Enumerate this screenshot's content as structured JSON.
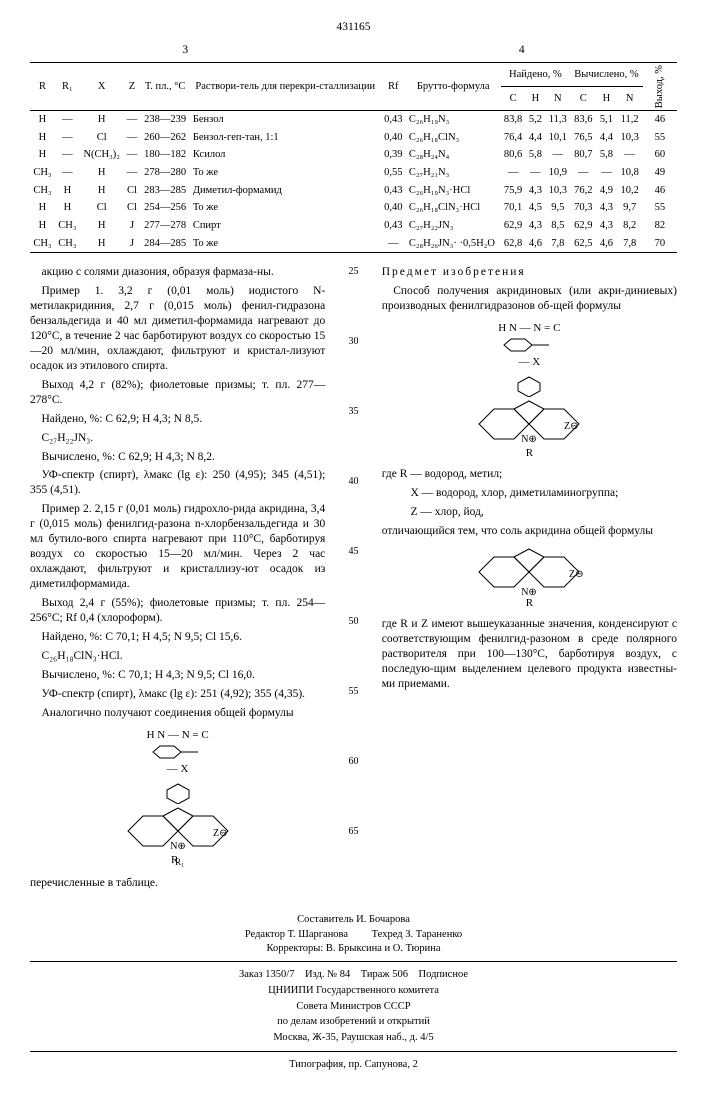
{
  "doc_number": "431165",
  "page_left": "3",
  "page_right": "4",
  "table": {
    "headers_top": [
      "R",
      "R₁",
      "X",
      "Z",
      "Т. пл., °C",
      "Раствори-тель для перекри-сталлизации",
      "Rf",
      "Брутто-формула"
    ],
    "found_label": "Найдено, %",
    "calc_label": "Вычислено, %",
    "yield_label": "Выход, %",
    "chn": [
      "C",
      "H",
      "N"
    ],
    "rows": [
      {
        "R": "H",
        "R1": "—",
        "X": "H",
        "Z": "—",
        "mp": "238—239",
        "solv": "Бензол",
        "rf": "0,43",
        "bf": "C₂₆H₁₉N₃",
        "fC": "83,8",
        "fH": "5,2",
        "fN": "11,3",
        "cC": "83,6",
        "cH": "5,1",
        "cN": "11,2",
        "y": "46"
      },
      {
        "R": "H",
        "R1": "—",
        "X": "Cl",
        "Z": "—",
        "mp": "260—262",
        "solv": "Бензол-геп-тан, 1:1",
        "rf": "0,40",
        "bf": "C₂₆H₁₈ClN₃",
        "fC": "76,4",
        "fH": "4,4",
        "fN": "10,1",
        "cC": "76,5",
        "cH": "4,4",
        "cN": "10,3",
        "y": "55"
      },
      {
        "R": "H",
        "R1": "—",
        "X": "N(CH₃)₂",
        "Z": "—",
        "mp": "180—182",
        "solv": "Ксилол",
        "rf": "0,39",
        "bf": "C₂₈H₂₄N₄",
        "fC": "80,6",
        "fH": "5,8",
        "fN": "—",
        "cC": "80,7",
        "cH": "5,8",
        "cN": "—",
        "y": "60"
      },
      {
        "R": "CH₃",
        "R1": "—",
        "X": "H",
        "Z": "—",
        "mp": "278—280",
        "solv": "То же",
        "rf": "0,55",
        "bf": "C₂₇H₂₁N₃",
        "fC": "—",
        "fH": "—",
        "fN": "10,9",
        "cC": "—",
        "cH": "—",
        "cN": "10,8",
        "y": "49"
      },
      {
        "R": "CH₃",
        "R1": "H",
        "X": "H",
        "Z": "Cl",
        "mp": "283—285",
        "solv": "Диметил-формамид",
        "rf": "0,43",
        "bf": "C₂₆H₁₉N₃·HCl",
        "fC": "75,9",
        "fH": "4,3",
        "fN": "10,3",
        "cC": "76,2",
        "cH": "4,9",
        "cN": "10,2",
        "y": "46"
      },
      {
        "R": "H",
        "R1": "H",
        "X": "Cl",
        "Z": "Cl",
        "mp": "254—256",
        "solv": "То же",
        "rf": "0,40",
        "bf": "C₂₆H₁₈ClN₃·HCl",
        "fC": "70,1",
        "fH": "4,5",
        "fN": "9,5",
        "cC": "70,3",
        "cH": "4,3",
        "cN": "9,7",
        "y": "55"
      },
      {
        "R": "H",
        "R1": "CH₃",
        "X": "H",
        "Z": "J",
        "mp": "277—278",
        "solv": "Спирт",
        "rf": "0,43",
        "bf": "C₂₇H₂₂JN₃",
        "fC": "62,9",
        "fH": "4,3",
        "fN": "8,5",
        "cC": "62,9",
        "cH": "4,3",
        "cN": "8,2",
        "y": "82"
      },
      {
        "R": "CH₃",
        "R1": "CH₃",
        "X": "H",
        "Z": "J",
        "mp": "284—285",
        "solv": "То же",
        "rf": "—",
        "bf": "C₂₈H₂₆JN₃·\n·0,5H₂O",
        "fC": "62,8",
        "fH": "4,6",
        "fN": "7,8",
        "cC": "62,5",
        "cH": "4,6",
        "cN": "7,8",
        "y": "70"
      }
    ]
  },
  "left_text": {
    "p1": "акцию с солями диазония, образуя фармаза-ны.",
    "p2a": "Пример 1. 3,2 г (0,01 моль) иодистого N-метилакридиния, 2,7 г (0,015 моль) фенил-гидразона бензальдегида и 40 мл диметил-формамида нагревают до 120°С, в течение 2 час барботируют воздух со скоростью 15—20 мл/мин, охлаждают, фильтруют и кристал-лизуют осадок из этилового спирта.",
    "p2b": "Выход 4,2 г (82%); фиолетовые призмы; т. пл. 277—278°С.",
    "p2c": "Найдено, %: C 62,9; H 4,3; N 8,5.",
    "p2d": "C₂₇H₂₂JN₃.",
    "p2e": "Вычислено, %: C 62,9; H 4,3; N 8,2.",
    "p2f": "УФ-спектр (спирт), λмакс (lg ε): 250 (4,95); 345 (4,51); 355 (4,51).",
    "p3a": "Пример 2. 2,15 г (0,01 моль) гидрохло-рида акридина, 3,4 г (0,015 моль) фенилгид-разона n-хлорбензальдегида и 30 мл бутило-вого спирта нагревают при 110°С, барботируя воздух со скоростью 15—20 мл/мин. Через 2 час охлаждают, фильтруют и кристаллизу-ют осадок из диметилформамида.",
    "p3b": "Выход 2,4 г (55%); фиолетовые призмы; т. пл. 254—256°С; Rf 0,4 (хлороформ).",
    "p3c": "Найдено, %: C 70,1; H 4,5; N 9,5; Cl 15,6.",
    "p3d": "C₂₆H₁₈ClN₃·HCl.",
    "p3e": "Вычислено, %: C 70,1; H 4,3; N 9,5; Cl 16,0.",
    "p3f": "УФ-спектр (спирт), λмакс (lg ε): 251 (4,92); 355 (4,35).",
    "p4": "Аналогично получают соединения общей формулы",
    "p5": "перечисленные в таблице."
  },
  "right_text": {
    "title": "Предмет изобретения",
    "p1": "Способ получения акридиновых (или акри-диниевых) производных фенилгидразонов об-щей формулы",
    "where_r": "где R — водород, метил;",
    "where_x": "X — водород, хлор, диметиламиногруппа;",
    "where_z": "Z — хлор, йод,",
    "p2": "отличающийся тем, что соль акридина общей формулы",
    "p3": "где R и Z имеют вышеуказанные значения, конденсируют с соответствующим фенилгид-разоном в среде полярного растворителя при 100—130°С, барботируя воздух, с последую-щим выделением целевого продукта известны-ми приемами."
  },
  "line_numbers": [
    "25",
    "30",
    "35",
    "40",
    "45",
    "50",
    "55",
    "60",
    "65"
  ],
  "footer": {
    "compiler": "Составитель И. Бочарова",
    "editor": "Редактор Т. Шарганова",
    "techred": "Техред З. Тараненко",
    "correctors": "Корректоры: В. Брыксина и О. Тюрина",
    "order": "Заказ 1350/7 Изд. № 84 Тираж 506 Подписное",
    "org1": "ЦНИИПИ Государственного комитета",
    "org2": "Совета Министров СССР",
    "org3": "по делам изобретений и открытий",
    "addr": "Москва, Ж-35, Раушская наб., д. 4/5",
    "print": "Типография, пр. Сапунова, 2"
  },
  "chem": {
    "top_label": "H N — N = C",
    "x_label": "— X",
    "z_label": "Z⊖",
    "r_label": "R",
    "r1_label": "R₁"
  }
}
